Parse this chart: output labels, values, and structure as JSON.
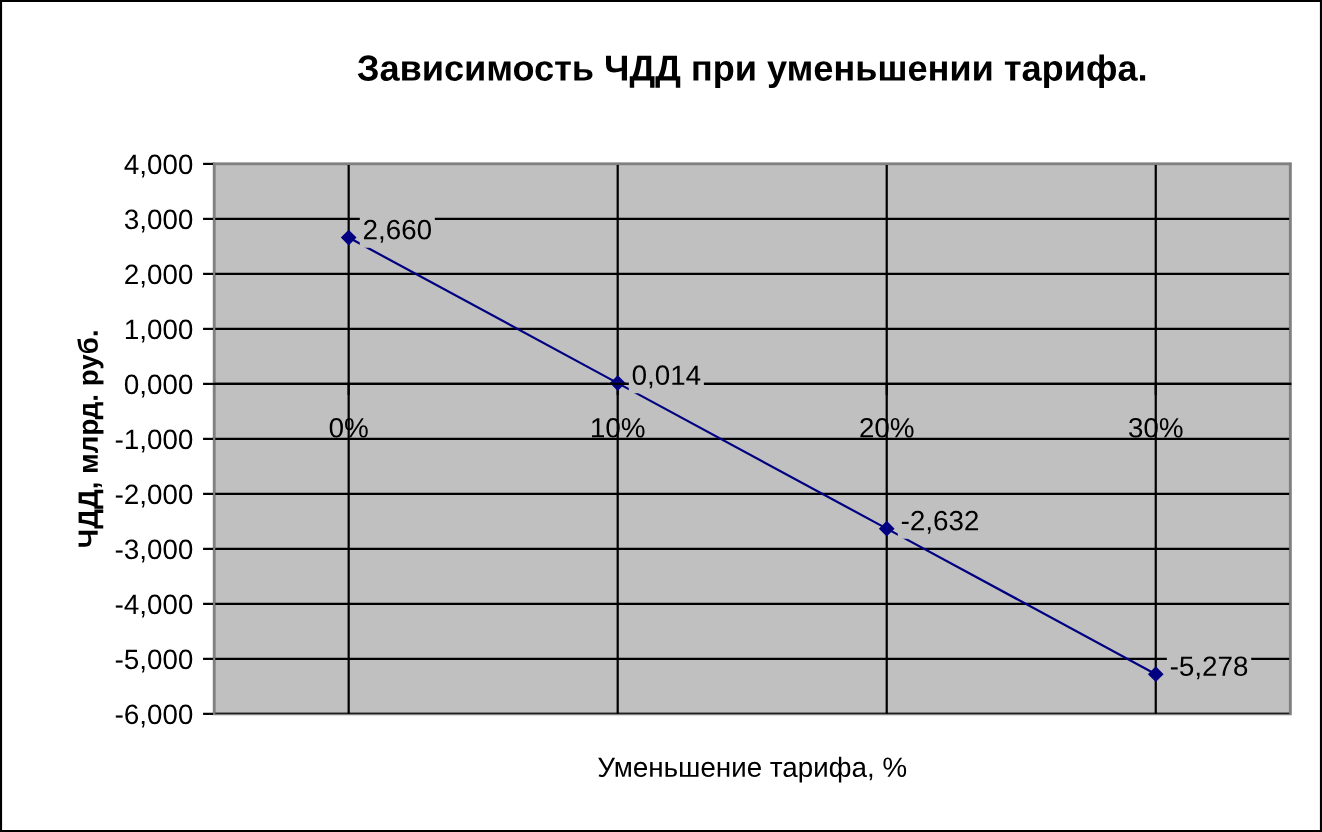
{
  "chart_data": {
    "type": "line",
    "title": "Зависимость ЧДД при уменьшении тарифа.",
    "xlabel": "Уменьшение тарифа, %",
    "ylabel": "ЧДД, млрд. руб.",
    "categories": [
      "0%",
      "10%",
      "20%",
      "30%"
    ],
    "series": [
      {
        "color": "#000080",
        "values": [
          2.66,
          0.014,
          -2.632,
          -5.278
        ],
        "value_labels": [
          "2,660",
          "0,014",
          "-2,632",
          "-5,278"
        ]
      }
    ],
    "ylim": [
      -6,
      4
    ],
    "yticks": [
      {
        "value": -6,
        "label": "-6,000"
      },
      {
        "value": -5,
        "label": "-5,000"
      },
      {
        "value": -4,
        "label": "-4,000"
      },
      {
        "value": -3,
        "label": "-3,000"
      },
      {
        "value": -2,
        "label": "-2,000"
      },
      {
        "value": -1,
        "label": "-1,000"
      },
      {
        "value": 0,
        "label": "0,000"
      },
      {
        "value": 1,
        "label": "1,000"
      },
      {
        "value": 2,
        "label": "2,000"
      },
      {
        "value": 3,
        "label": "3,000"
      },
      {
        "value": 4,
        "label": "4,000"
      }
    ],
    "grid": true,
    "legend": false,
    "marker": "diamond",
    "line_style": "solid"
  }
}
